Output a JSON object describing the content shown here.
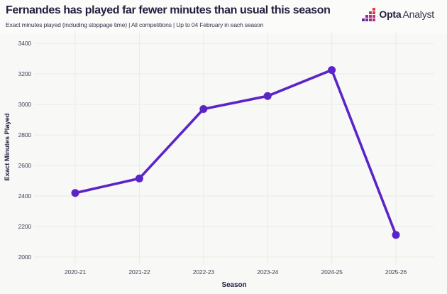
{
  "header": {
    "title": "Fernandes has played far fewer minutes than usual this season",
    "subtitle": "Exact minutes played (including stoppage time) | All competitions | Up to 04 February in each season",
    "logo": {
      "opta": "Opta",
      "analyst": "Analyst"
    }
  },
  "colors": {
    "line": "#5b24c9",
    "marker": "#5b24c9",
    "background": "#f8f8f6",
    "gridline": "#eaeae7",
    "title_text": "#221f3e",
    "tick_text": "#45435a",
    "logo_palette": [
      "#5f2a9e",
      "#7b2b9a",
      "#962c90",
      "#b02e81",
      "#c5306c",
      "#d73655",
      "#e23c43"
    ]
  },
  "chart_data": {
    "type": "line",
    "title": "Fernandes has played far fewer minutes than usual this season",
    "subtitle": "Exact minutes played (including stoppage time) | All competitions | Up to 04 February in each season",
    "categories": [
      "2020-21",
      "2021-22",
      "2022-23",
      "2023-24",
      "2024-25",
      "2025-26"
    ],
    "values": [
      2420,
      2515,
      2970,
      3055,
      3225,
      2145
    ],
    "series_name": "Exact minutes played",
    "xlabel": "Season",
    "ylabel": "Exact Minutes Played",
    "ylim": [
      2000,
      3400
    ],
    "y_ticks": [
      2000,
      2200,
      2400,
      2600,
      2800,
      3000,
      3200,
      3400
    ],
    "grid": true,
    "legend": "none"
  }
}
